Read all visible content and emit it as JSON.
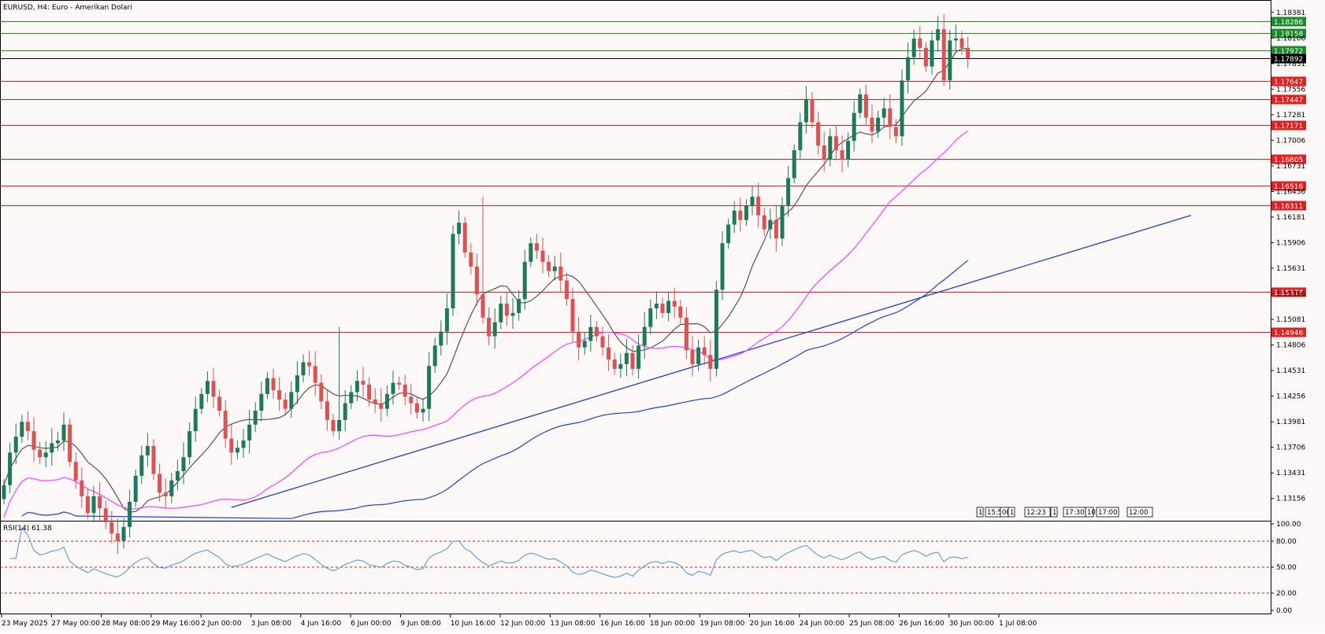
{
  "window": {
    "title": "EURUSD, H4:  Euro - Amerikan Dolari"
  },
  "rsi_panel": {
    "label": "RSI(14) 61.38"
  },
  "time_tags": [
    "1",
    "15:56",
    "00",
    "1",
    "12:23",
    "1",
    "17:30",
    "10",
    "17:00",
    "12:00"
  ],
  "colors": {
    "background": "#fdf8f8",
    "bull": "#1a7a5a",
    "bear": "#e05050",
    "support": "#e02020",
    "resistance": "#1a8a2a",
    "ma_fast": "#555555",
    "ma_mid": "#ff40ff",
    "ma_slow": "#2040d0",
    "trendline": "#2040c0",
    "rsi": "#4a90e0",
    "rsi_levels": "#cc2020"
  },
  "chart_data": [
    {
      "type": "candlestick",
      "title": "EURUSD, H4:  Euro - Amerikan Dolari",
      "ylim": [
        1.1301,
        1.1843
      ],
      "y_tick_labels": [
        "1.18381",
        "1.18106",
        "1.17831",
        "1.17556",
        "1.17281",
        "1.17006",
        "1.16731",
        "1.16456",
        "1.16181",
        "1.15906",
        "1.15631",
        "1.15356",
        "1.15081",
        "1.14806",
        "1.14531",
        "1.14256",
        "1.13981",
        "1.13706",
        "1.13431",
        "1.13156"
      ],
      "x_tick_labels": [
        "23 May 2025",
        "27 May 00:00",
        "28 May 08:00",
        "29 May 16:00",
        "2 Jun 00:00",
        "3 Jun 08:00",
        "4 Jun 16:00",
        "6 Jun 00:00",
        "9 Jun 08:00",
        "10 Jun 16:00",
        "12 Jun 00:00",
        "13 Jun 08:00",
        "16 Jun 16:00",
        "18 Jun 00:00",
        "19 Jun 08:00",
        "20 Jun 16:00",
        "24 Jun 00:00",
        "25 Jun 08:00",
        "26 Jun 16:00",
        "30 Jun 00:00",
        "1 Jul 08:00"
      ],
      "horizontal_levels": [
        {
          "label": "1.18286",
          "value": 1.18286,
          "kind": "resistance"
        },
        {
          "label": "1.18158",
          "value": 1.18158,
          "kind": "resistance"
        },
        {
          "label": "1.17972",
          "value": 1.17972,
          "kind": "resistance"
        },
        {
          "label": "1.17892",
          "value": 1.17892,
          "kind": "current"
        },
        {
          "label": "1.17647",
          "value": 1.17647,
          "kind": "support"
        },
        {
          "label": "1.17447",
          "value": 1.17447,
          "kind": "support"
        },
        {
          "label": "1.17171",
          "value": 1.17171,
          "kind": "support"
        },
        {
          "label": "1.16805",
          "value": 1.16805,
          "kind": "support"
        },
        {
          "label": "1.16516",
          "value": 1.16516,
          "kind": "support"
        },
        {
          "label": "1.16311",
          "value": 1.16311,
          "kind": "support"
        },
        {
          "label": "1.15378",
          "value": 1.15378,
          "kind": "support"
        },
        {
          "label": "1.14946",
          "value": 1.14946,
          "kind": "support"
        }
      ],
      "closes": [
        1.133,
        1.1365,
        1.1382,
        1.1398,
        1.1388,
        1.1368,
        1.136,
        1.1365,
        1.1375,
        1.1378,
        1.1395,
        1.1355,
        1.1335,
        1.1318,
        1.13,
        1.1318,
        1.1305,
        1.129,
        1.1278,
        1.127,
        1.1285,
        1.1312,
        1.134,
        1.1362,
        1.1372,
        1.1342,
        1.1322,
        1.1318,
        1.1335,
        1.1345,
        1.136,
        1.1388,
        1.1412,
        1.1428,
        1.1442,
        1.1425,
        1.141,
        1.138,
        1.1365,
        1.137,
        1.1378,
        1.1395,
        1.141,
        1.1428,
        1.1445,
        1.1432,
        1.1422,
        1.1412,
        1.143,
        1.1448,
        1.1462,
        1.1458,
        1.144,
        1.142,
        1.14,
        1.1388,
        1.14,
        1.1418,
        1.143,
        1.1442,
        1.1438,
        1.1422,
        1.1418,
        1.1412,
        1.1428,
        1.144,
        1.1438,
        1.1425,
        1.1418,
        1.1408,
        1.1412,
        1.1458,
        1.148,
        1.1495,
        1.152,
        1.16,
        1.1612,
        1.158,
        1.1565,
        1.1535,
        1.151,
        1.149,
        1.1505,
        1.1525,
        1.1512,
        1.1515,
        1.153,
        1.157,
        1.159,
        1.1582,
        1.157,
        1.156,
        1.1565,
        1.155,
        1.153,
        1.1495,
        1.1478,
        1.1485,
        1.15,
        1.149,
        1.1478,
        1.1465,
        1.1455,
        1.146,
        1.1472,
        1.1455,
        1.148,
        1.15,
        1.152,
        1.1525,
        1.1515,
        1.1528,
        1.1522,
        1.151,
        1.1475,
        1.146,
        1.1478,
        1.147,
        1.1455,
        1.154,
        1.159,
        1.161,
        1.1625,
        1.1615,
        1.163,
        1.164,
        1.162,
        1.1605,
        1.1615,
        1.1595,
        1.163,
        1.166,
        1.169,
        1.172,
        1.1745,
        1.172,
        1.1695,
        1.168,
        1.1705,
        1.169,
        1.168,
        1.17,
        1.173,
        1.175,
        1.1725,
        1.171,
        1.1725,
        1.1735,
        1.1715,
        1.1705,
        1.1765,
        1.179,
        1.181,
        1.18,
        1.178,
        1.1808,
        1.182,
        1.1765,
        1.1808,
        1.181,
        1.18,
        1.1789
      ],
      "rsi_ylim": [
        0,
        100
      ],
      "rsi_tick_labels": [
        "100.00",
        "80.00",
        "50.00",
        "20.00",
        "0.00"
      ],
      "rsi_levels": [
        80,
        50,
        20
      ],
      "rsi_last": 61.38
    }
  ]
}
